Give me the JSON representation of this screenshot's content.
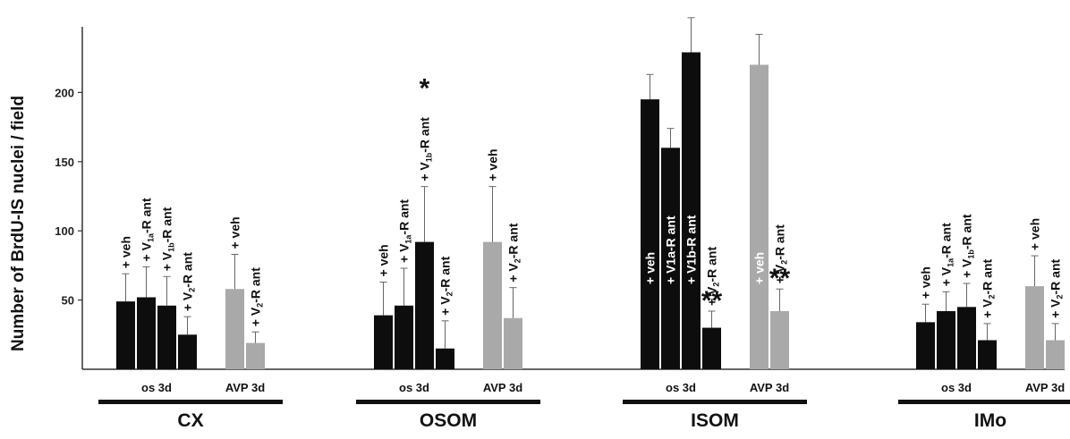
{
  "chart_data": {
    "type": "bar",
    "ylabel": "Number of BrdU-IS nuclei / field",
    "ylim": [
      0,
      250
    ],
    "yticks": [
      50,
      100,
      150,
      200
    ],
    "colors": {
      "os": "#0d0d0d",
      "avp": "#a9a9a9"
    },
    "groups": [
      {
        "region": "CX",
        "os_label": "os 3d",
        "avp_label": "AVP 3d",
        "bars": [
          {
            "cond": "os",
            "value": 49,
            "error": 20,
            "label": [
              [
                "+ V"
              ],
              [
                "eh"
              ]
            ]
          },
          {
            "cond": "os",
            "value": 52,
            "error": 22,
            "label": [
              [
                "+ V"
              ],
              [
                "1a",
                "sub"
              ],
              [
                "-R ant"
              ]
            ]
          },
          {
            "cond": "os",
            "value": 46,
            "error": 21,
            "label": [
              [
                "+ V"
              ],
              [
                "1b",
                "sub"
              ],
              [
                "-R ant"
              ]
            ]
          },
          {
            "cond": "os",
            "value": 25,
            "error": 13,
            "label": [
              [
                "+ V"
              ],
              [
                "2",
                "sub"
              ],
              [
                "-R ant"
              ]
            ]
          },
          {
            "cond": "avp",
            "value": 58,
            "error": 25,
            "label": [
              [
                "+ veh"
              ]
            ]
          },
          {
            "cond": "avp",
            "value": 19,
            "error": 8,
            "label": [
              [
                "+ V"
              ],
              [
                "2",
                "sub"
              ],
              [
                "-R ant"
              ]
            ]
          }
        ]
      },
      {
        "region": "OSOM",
        "os_label": "os 3d",
        "avp_label": "AVP 3d",
        "bars": [
          {
            "cond": "os",
            "value": 39,
            "error": 24,
            "label": [
              [
                "+ veh"
              ]
            ]
          },
          {
            "cond": "os",
            "value": 46,
            "error": 27,
            "label": [
              [
                "+ V"
              ],
              [
                "1a",
                "sub"
              ],
              [
                "-R ant"
              ]
            ]
          },
          {
            "cond": "os",
            "value": 92,
            "error": 40,
            "label": [
              [
                "+ V"
              ],
              [
                "1b",
                "sub"
              ],
              [
                "-R ant"
              ]
            ],
            "star": "*"
          },
          {
            "cond": "os",
            "value": 15,
            "error": 20,
            "label": [
              [
                "+ V"
              ],
              [
                "2",
                "sub"
              ],
              [
                "-R ant"
              ]
            ]
          },
          {
            "cond": "avp",
            "value": 92,
            "error": 40,
            "label": [
              [
                "+ veh"
              ]
            ]
          },
          {
            "cond": "avp",
            "value": 37,
            "error": 22,
            "label": [
              [
                "+ V"
              ],
              [
                "2",
                "sub"
              ],
              [
                "-R ant"
              ]
            ]
          }
        ]
      },
      {
        "region": "ISOM",
        "os_label": "os 3d",
        "avp_label": "AVP 3d",
        "bars": [
          {
            "cond": "os",
            "value": 195,
            "error": 18,
            "label": [
              [
                "+ veh"
              ]
            ],
            "inside": true
          },
          {
            "cond": "os",
            "value": 160,
            "error": 14,
            "label": [
              [
                "+ V1a-R ant"
              ]
            ],
            "inside": true
          },
          {
            "cond": "os",
            "value": 229,
            "error": 25,
            "label": [
              [
                "+ V1b-R ant"
              ]
            ],
            "inside": true
          },
          {
            "cond": "os",
            "value": 30,
            "error": 12,
            "label": [
              [
                "+ V"
              ],
              [
                "2",
                "sub"
              ],
              [
                "-R ant"
              ]
            ],
            "star": "**"
          },
          {
            "cond": "avp",
            "value": 220,
            "error": 22,
            "label": [
              [
                "+ veh"
              ]
            ],
            "inside": true
          },
          {
            "cond": "avp",
            "value": 42,
            "error": 16,
            "label": [
              [
                "+ V"
              ],
              [
                "2",
                "sub"
              ],
              [
                "-R ant"
              ]
            ],
            "star": "**"
          }
        ]
      },
      {
        "region": "IMo",
        "os_label": "os 3d",
        "avp_label": "AVP 3d",
        "bars": [
          {
            "cond": "os",
            "value": 34,
            "error": 13,
            "label": [
              [
                "+ veh"
              ]
            ]
          },
          {
            "cond": "os",
            "value": 42,
            "error": 14,
            "label": [
              [
                "+ V"
              ],
              [
                "1a",
                "sub"
              ],
              [
                "-R ant"
              ]
            ]
          },
          {
            "cond": "os",
            "value": 45,
            "error": 17,
            "label": [
              [
                "+ V"
              ],
              [
                "1b",
                "sub"
              ],
              [
                "-R ant"
              ]
            ]
          },
          {
            "cond": "os",
            "value": 21,
            "error": 12,
            "label": [
              [
                "+ V"
              ],
              [
                "2",
                "sub"
              ],
              [
                "-R ant"
              ]
            ]
          },
          {
            "cond": "avp",
            "value": 60,
            "error": 22,
            "label": [
              [
                "+ veh"
              ]
            ]
          },
          {
            "cond": "avp",
            "value": 21,
            "error": 12,
            "label": [
              [
                "+ V"
              ],
              [
                "2",
                "sub"
              ],
              [
                "-R ant"
              ]
            ]
          }
        ]
      }
    ]
  }
}
